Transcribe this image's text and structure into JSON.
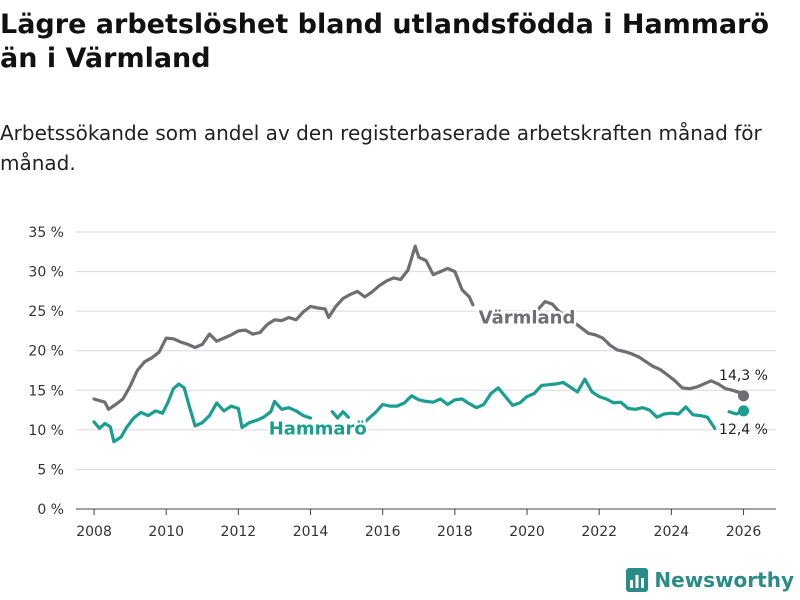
{
  "title": "Lägre arbetslöshet bland utlandsfödda i Hammarö än i Värmland",
  "subtitle": "Arbetssökande som andel av den registerbaserade arbetskraften månad för månad.",
  "brand": "Newsworthy",
  "chart_data": {
    "type": "line",
    "xlim": [
      2007.5,
      2026.9
    ],
    "ylim": [
      0,
      35
    ],
    "yticks": [
      0,
      5,
      10,
      15,
      20,
      25,
      30,
      35
    ],
    "ytick_labels": [
      "0 %",
      "5 %",
      "10 %",
      "15 %",
      "20 %",
      "25 %",
      "30 %",
      "35 %"
    ],
    "xticks": [
      2008,
      2010,
      2012,
      2014,
      2016,
      2018,
      2020,
      2022,
      2024,
      2026
    ],
    "xtick_labels": [
      "2008",
      "2010",
      "2012",
      "2014",
      "2016",
      "2018",
      "2020",
      "2022",
      "2024",
      "2026"
    ],
    "series": [
      {
        "name": "Värmland",
        "color": "#6e6e73",
        "end_label": "14,3 %",
        "points": [
          [
            2008.0,
            13.9
          ],
          [
            2008.3,
            13.5
          ],
          [
            2008.4,
            12.6
          ],
          [
            2008.6,
            13.2
          ],
          [
            2008.8,
            13.9
          ],
          [
            2009.0,
            15.5
          ],
          [
            2009.2,
            17.5
          ],
          [
            2009.4,
            18.6
          ],
          [
            2009.6,
            19.1
          ],
          [
            2009.8,
            19.8
          ],
          [
            2010.0,
            21.6
          ],
          [
            2010.2,
            21.5
          ],
          [
            2010.4,
            21.1
          ],
          [
            2010.6,
            20.8
          ],
          [
            2010.8,
            20.4
          ],
          [
            2011.0,
            20.8
          ],
          [
            2011.2,
            22.1
          ],
          [
            2011.4,
            21.2
          ],
          [
            2011.6,
            21.6
          ],
          [
            2011.8,
            22.0
          ],
          [
            2012.0,
            22.5
          ],
          [
            2012.2,
            22.6
          ],
          [
            2012.4,
            22.1
          ],
          [
            2012.6,
            22.3
          ],
          [
            2012.8,
            23.3
          ],
          [
            2013.0,
            23.9
          ],
          [
            2013.2,
            23.8
          ],
          [
            2013.4,
            24.2
          ],
          [
            2013.6,
            23.9
          ],
          [
            2013.8,
            24.9
          ],
          [
            2014.0,
            25.6
          ],
          [
            2014.2,
            25.4
          ],
          [
            2014.4,
            25.3
          ],
          [
            2014.5,
            24.2
          ],
          [
            2014.7,
            25.6
          ],
          [
            2014.9,
            26.6
          ],
          [
            2015.1,
            27.1
          ],
          [
            2015.3,
            27.5
          ],
          [
            2015.5,
            26.8
          ],
          [
            2015.7,
            27.4
          ],
          [
            2015.9,
            28.2
          ],
          [
            2016.1,
            28.8
          ],
          [
            2016.3,
            29.2
          ],
          [
            2016.5,
            29.0
          ],
          [
            2016.7,
            30.2
          ],
          [
            2016.9,
            33.2
          ],
          [
            2017.0,
            31.8
          ],
          [
            2017.2,
            31.4
          ],
          [
            2017.4,
            29.6
          ],
          [
            2017.6,
            30.0
          ],
          [
            2017.8,
            30.4
          ],
          [
            2018.0,
            30.0
          ],
          [
            2018.2,
            27.7
          ],
          [
            2018.4,
            26.8
          ],
          [
            2018.5,
            25.8
          ]
        ],
        "points_b": [
          [
            2020.3,
            25.2
          ],
          [
            2020.5,
            26.2
          ],
          [
            2020.7,
            25.9
          ],
          [
            2020.9,
            24.9
          ],
          [
            2021.1,
            24.2
          ],
          [
            2021.3,
            23.6
          ],
          [
            2021.5,
            22.9
          ],
          [
            2021.7,
            22.2
          ],
          [
            2021.9,
            22.0
          ],
          [
            2022.1,
            21.6
          ],
          [
            2022.3,
            20.7
          ],
          [
            2022.5,
            20.1
          ],
          [
            2022.7,
            19.9
          ],
          [
            2022.9,
            19.6
          ],
          [
            2023.1,
            19.2
          ],
          [
            2023.3,
            18.6
          ],
          [
            2023.5,
            18.0
          ],
          [
            2023.7,
            17.6
          ],
          [
            2023.9,
            16.9
          ],
          [
            2024.1,
            16.2
          ],
          [
            2024.3,
            15.3
          ],
          [
            2024.5,
            15.2
          ],
          [
            2024.7,
            15.4
          ],
          [
            2024.9,
            15.8
          ],
          [
            2025.1,
            16.2
          ],
          [
            2025.3,
            15.8
          ],
          [
            2025.5,
            15.2
          ],
          [
            2025.7,
            15.0
          ],
          [
            2025.9,
            14.7
          ],
          [
            2026.0,
            14.3
          ]
        ]
      },
      {
        "name": "Hammarö",
        "color": "#1a9e8f",
        "end_label": "12,4 %",
        "points": [
          [
            2008.0,
            11.0
          ],
          [
            2008.15,
            10.2
          ],
          [
            2008.3,
            10.8
          ],
          [
            2008.45,
            10.4
          ],
          [
            2008.55,
            8.5
          ],
          [
            2008.75,
            9.1
          ],
          [
            2008.9,
            10.3
          ],
          [
            2009.1,
            11.5
          ],
          [
            2009.3,
            12.2
          ],
          [
            2009.5,
            11.8
          ],
          [
            2009.7,
            12.4
          ],
          [
            2009.9,
            12.1
          ],
          [
            2010.05,
            13.5
          ],
          [
            2010.2,
            15.2
          ],
          [
            2010.35,
            15.8
          ],
          [
            2010.5,
            15.3
          ],
          [
            2010.65,
            12.8
          ],
          [
            2010.8,
            10.5
          ],
          [
            2011.0,
            10.9
          ],
          [
            2011.2,
            11.8
          ],
          [
            2011.4,
            13.4
          ],
          [
            2011.6,
            12.4
          ],
          [
            2011.8,
            13.0
          ],
          [
            2012.0,
            12.7
          ],
          [
            2012.1,
            10.3
          ],
          [
            2012.3,
            10.9
          ],
          [
            2012.5,
            11.2
          ],
          [
            2012.7,
            11.6
          ],
          [
            2012.9,
            12.3
          ],
          [
            2013.0,
            13.6
          ],
          [
            2013.2,
            12.6
          ],
          [
            2013.4,
            12.8
          ],
          [
            2013.6,
            12.4
          ],
          [
            2013.8,
            11.8
          ],
          [
            2014.0,
            11.5
          ]
        ],
        "points_b": [
          [
            2014.6,
            12.3
          ],
          [
            2014.75,
            11.5
          ],
          [
            2014.9,
            12.3
          ],
          [
            2015.05,
            11.6
          ]
        ],
        "points_c": [
          [
            2015.4,
            10.6
          ],
          [
            2015.6,
            11.4
          ],
          [
            2015.8,
            12.2
          ],
          [
            2016.0,
            13.2
          ],
          [
            2016.2,
            13.0
          ],
          [
            2016.4,
            13.0
          ],
          [
            2016.6,
            13.4
          ],
          [
            2016.8,
            14.3
          ],
          [
            2017.0,
            13.8
          ],
          [
            2017.2,
            13.6
          ],
          [
            2017.4,
            13.5
          ],
          [
            2017.6,
            13.9
          ],
          [
            2017.8,
            13.2
          ],
          [
            2018.0,
            13.8
          ],
          [
            2018.2,
            13.9
          ],
          [
            2018.4,
            13.3
          ],
          [
            2018.6,
            12.8
          ],
          [
            2018.8,
            13.2
          ],
          [
            2019.0,
            14.6
          ],
          [
            2019.2,
            15.3
          ],
          [
            2019.4,
            14.2
          ],
          [
            2019.6,
            13.1
          ],
          [
            2019.8,
            13.4
          ],
          [
            2020.0,
            14.2
          ],
          [
            2020.2,
            14.6
          ],
          [
            2020.4,
            15.6
          ],
          [
            2020.6,
            15.7
          ],
          [
            2020.8,
            15.8
          ],
          [
            2021.0,
            16.0
          ],
          [
            2021.2,
            15.4
          ],
          [
            2021.4,
            14.8
          ],
          [
            2021.6,
            16.4
          ],
          [
            2021.8,
            14.8
          ],
          [
            2022.0,
            14.2
          ],
          [
            2022.2,
            13.9
          ],
          [
            2022.4,
            13.4
          ],
          [
            2022.6,
            13.5
          ],
          [
            2022.8,
            12.7
          ],
          [
            2023.0,
            12.6
          ],
          [
            2023.2,
            12.8
          ],
          [
            2023.4,
            12.5
          ],
          [
            2023.6,
            11.6
          ],
          [
            2023.8,
            12.0
          ],
          [
            2024.0,
            12.1
          ],
          [
            2024.2,
            12.0
          ],
          [
            2024.4,
            12.9
          ],
          [
            2024.6,
            11.9
          ],
          [
            2024.8,
            11.8
          ],
          [
            2025.0,
            11.6
          ],
          [
            2025.2,
            10.2
          ]
        ],
        "points_d": [
          [
            2025.6,
            12.3
          ],
          [
            2025.8,
            12.0
          ],
          [
            2026.0,
            12.4
          ]
        ]
      }
    ],
    "labels": [
      {
        "text": "Värmland",
        "x": 2020.0,
        "y": 24.2,
        "series": 0
      },
      {
        "text": "Hammarö",
        "x": 2014.2,
        "y": 10.2,
        "series": 1
      }
    ]
  }
}
